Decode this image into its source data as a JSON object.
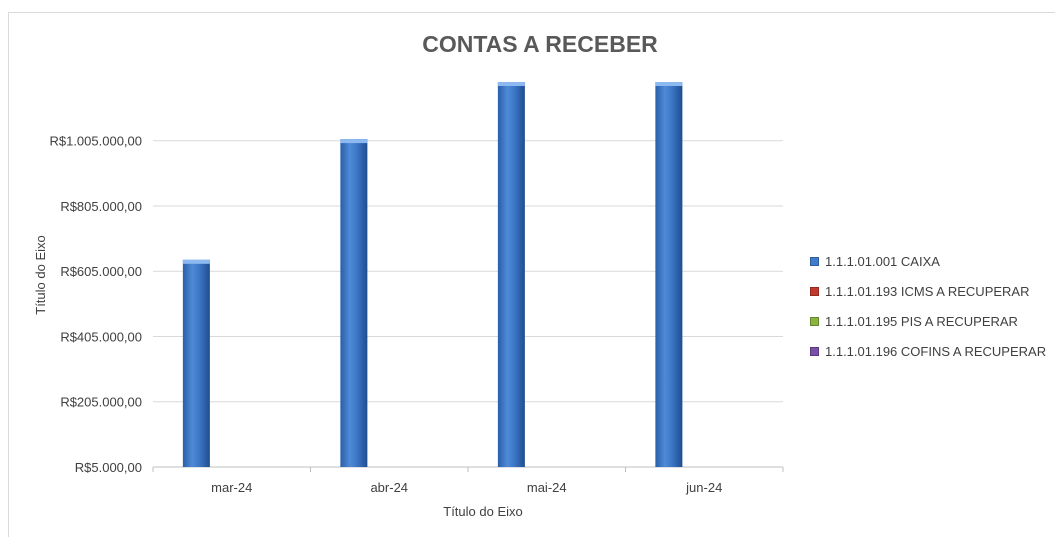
{
  "chart_data": {
    "type": "bar",
    "title": "CONTAS A RECEBER",
    "xlabel": "Título do Eixo",
    "ylabel": "Título do Eixo",
    "categories": [
      "mar-24",
      "abr-24",
      "mai-24",
      "jun-24"
    ],
    "y_ticks": [
      "R$5.000,00",
      "R$205.000,00",
      "R$405.000,00",
      "R$605.000,00",
      "R$805.000,00",
      "R$1.005.000,00"
    ],
    "ylim": [
      5000,
      1185000
    ],
    "grid": true,
    "legend_position": "right",
    "series": [
      {
        "name": "1.1.1.01.001 CAIXA",
        "color": "#3f7ccc",
        "values": [
          640000,
          1010000,
          1185000,
          1185000
        ]
      },
      {
        "name": "1.1.1.01.193 ICMS A RECUPERAR",
        "color": "#c0392b",
        "values": [
          0,
          0,
          0,
          0
        ]
      },
      {
        "name": "1.1.1.01.195 PIS A RECUPERAR",
        "color": "#8ab33f",
        "values": [
          0,
          0,
          0,
          0
        ]
      },
      {
        "name": "1.1.1.01.196 COFINS A RECUPERAR",
        "color": "#7a4fa8",
        "values": [
          0,
          0,
          0,
          0
        ]
      }
    ]
  }
}
